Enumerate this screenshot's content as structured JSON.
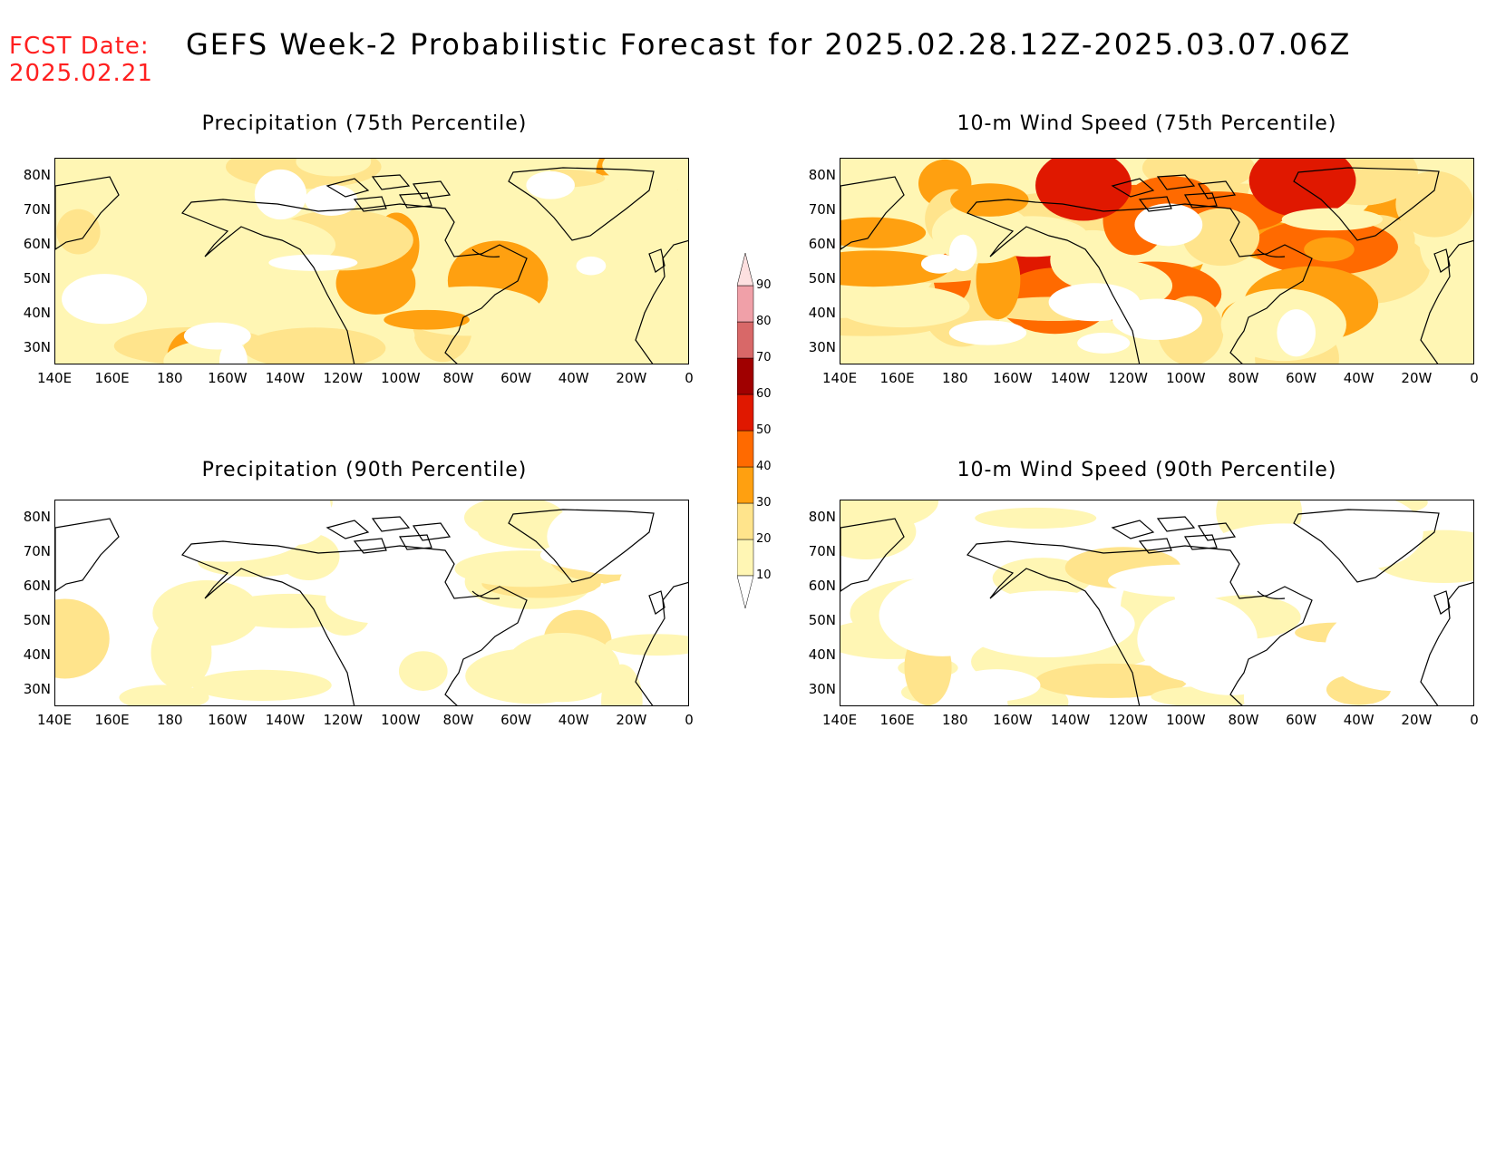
{
  "header": {
    "fcst_line1": "FCST Date:",
    "fcst_line2": "2025.02.21",
    "title": "GEFS Week-2 Probabilistic Forecast for 2025.02.28.12Z-2025.03.07.06Z"
  },
  "panels": [
    {
      "title": "Precipitation (75th Percentile)",
      "intensity": "moderate"
    },
    {
      "title": "10-m Wind Speed (75th Percentile)",
      "intensity": "high"
    },
    {
      "title": "Precipitation (90th Percentile)",
      "intensity": "low"
    },
    {
      "title": "10-m Wind Speed (90th Percentile)",
      "intensity": "low"
    }
  ],
  "axes": {
    "lat_labels": [
      "80N",
      "70N",
      "60N",
      "50N",
      "40N",
      "30N"
    ],
    "lon_labels": [
      "140E",
      "160E",
      "180",
      "160W",
      "140W",
      "120W",
      "100W",
      "80W",
      "60W",
      "40W",
      "20W",
      "0"
    ]
  },
  "colorbar": {
    "levels": [
      "10",
      "20",
      "30",
      "40",
      "50",
      "60",
      "70",
      "80",
      "90"
    ],
    "colors": [
      "#fff6b4",
      "#ffe48c",
      "#ffa010",
      "#ff6a00",
      "#e01800",
      "#a00000",
      "#d86868",
      "#f0a0a8",
      "#fde0e0"
    ]
  }
}
